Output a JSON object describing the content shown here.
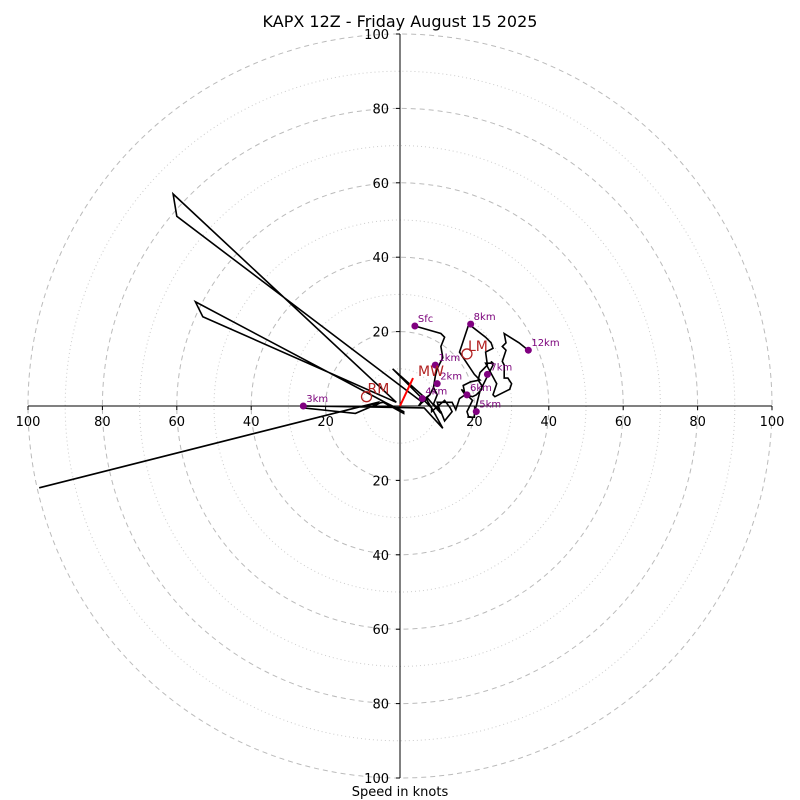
{
  "chart_data": {
    "type": "line",
    "title": "KAPX 12Z - Friday August 15 2025",
    "xlabel": "Speed in knots",
    "ylabel": "",
    "range": [
      -100,
      100
    ],
    "rings_major": [
      20,
      40,
      60,
      80,
      100
    ],
    "rings_minor": [
      10,
      30,
      50,
      70,
      90
    ],
    "tick_labels": [
      "100",
      "80",
      "60",
      "40",
      "20",
      "20",
      "40",
      "60",
      "80",
      "100"
    ],
    "x_tick_values": [
      -100,
      -80,
      -60,
      -40,
      -20,
      20,
      40,
      60,
      80,
      100
    ],
    "y_tick_values": [
      100,
      80,
      60,
      40,
      20,
      -20,
      -40,
      -60,
      -80,
      -100
    ],
    "colors": {
      "hodograph": "#000000",
      "height_marker": "#800080",
      "motion": "#b22222",
      "mean_wind_vector": "#ff0000",
      "grid": "#bbbbbb"
    },
    "hodograph": [
      [
        4,
        21.5
      ],
      [
        11,
        19.5
      ],
      [
        12,
        18.5
      ],
      [
        11,
        16
      ],
      [
        11.5,
        13
      ],
      [
        10,
        10
      ],
      [
        9.5,
        8
      ],
      [
        9,
        5
      ],
      [
        8,
        3
      ],
      [
        6,
        1.5
      ],
      [
        5,
        0
      ],
      [
        6,
        1
      ],
      [
        7,
        2
      ],
      [
        8,
        3
      ],
      [
        9,
        5
      ],
      [
        10,
        3
      ],
      [
        9,
        0.5
      ],
      [
        11,
        -1.5
      ],
      [
        12,
        -4
      ],
      [
        14,
        -1.5
      ],
      [
        13.5,
        -0.5
      ],
      [
        12,
        1.5
      ],
      [
        8.5,
        -1.5
      ],
      [
        8.5,
        -0.5
      ],
      [
        -2,
        10
      ],
      [
        7,
        2
      ],
      [
        8.5,
        -0.5
      ],
      [
        11.5,
        -6
      ],
      [
        6.5,
        -0.5
      ],
      [
        -26,
        0
      ],
      [
        -26,
        -0.5
      ],
      [
        -12,
        -2
      ],
      [
        -5,
        1
      ],
      [
        -7,
        0
      ],
      [
        -6,
        1
      ],
      [
        -97,
        -22
      ],
      [
        -10,
        0
      ],
      [
        -4.5,
        1
      ],
      [
        1,
        -2
      ],
      [
        1,
        -1.5
      ],
      [
        -4,
        1
      ],
      [
        -55,
        28
      ],
      [
        -53,
        24
      ],
      [
        -1,
        1
      ],
      [
        -61,
        57
      ],
      [
        -60,
        51
      ],
      [
        6,
        1
      ],
      [
        7.5,
        2
      ],
      [
        11,
        -2
      ],
      [
        10,
        1
      ],
      [
        14,
        1
      ],
      [
        15,
        -1
      ],
      [
        16,
        2
      ],
      [
        17.5,
        3
      ],
      [
        17,
        5.5
      ],
      [
        19,
        6.5
      ],
      [
        21.5,
        7
      ],
      [
        20,
        8.5
      ],
      [
        16,
        14.5
      ],
      [
        16.5,
        16
      ],
      [
        18.5,
        22
      ],
      [
        23,
        18.5
      ],
      [
        24.5,
        17
      ],
      [
        25,
        15.5
      ],
      [
        23,
        14.5
      ],
      [
        23.5,
        11
      ],
      [
        21.5,
        9
      ],
      [
        21,
        7
      ],
      [
        22,
        5.5
      ],
      [
        22,
        4.5
      ],
      [
        20.5,
        3
      ],
      [
        19.5,
        2.5
      ],
      [
        17.5,
        3
      ],
      [
        16.5,
        4.5
      ],
      [
        19.5,
        1.5
      ],
      [
        18,
        -1.5
      ],
      [
        18.5,
        -3
      ],
      [
        20,
        -3
      ],
      [
        20,
        -1.5
      ],
      [
        20.5,
        0
      ],
      [
        21,
        2
      ],
      [
        21.5,
        4
      ],
      [
        22.5,
        6
      ],
      [
        23.5,
        8
      ],
      [
        24.5,
        10
      ],
      [
        25,
        11
      ],
      [
        24.5,
        12
      ],
      [
        25,
        11.5
      ],
      [
        23,
        11.5
      ],
      [
        26,
        6
      ],
      [
        25,
        3
      ],
      [
        25.5,
        2.5
      ],
      [
        29.5,
        4.5
      ],
      [
        30,
        6
      ],
      [
        29,
        7.5
      ],
      [
        28,
        7.5
      ],
      [
        28,
        9
      ],
      [
        28,
        11
      ],
      [
        27.5,
        12
      ],
      [
        28.5,
        15
      ],
      [
        27.5,
        16
      ],
      [
        28.5,
        17
      ],
      [
        28,
        19.5
      ],
      [
        32,
        17
      ],
      [
        34.5,
        15
      ]
    ],
    "height_markers": [
      {
        "label": "Sfc",
        "x": 4,
        "y": 21.5
      },
      {
        "label": "1km",
        "x": 9.5,
        "y": 11
      },
      {
        "label": "2km",
        "x": 10,
        "y": 6
      },
      {
        "label": "3km",
        "x": -26,
        "y": 0
      },
      {
        "label": "4km",
        "x": 6,
        "y": 2
      },
      {
        "label": "5km",
        "x": 20.5,
        "y": -1.5
      },
      {
        "label": "6km",
        "x": 18,
        "y": 3
      },
      {
        "label": "7km",
        "x": 23.5,
        "y": 8.5
      },
      {
        "label": "8km",
        "x": 19,
        "y": 22
      },
      {
        "label": "12km",
        "x": 34.5,
        "y": 15
      }
    ],
    "storm_motion": [
      {
        "label": "RM",
        "x": -9,
        "y": 2.5
      },
      {
        "label": "LM",
        "x": 18,
        "y": 14
      },
      {
        "label": "MW",
        "x": 3.5,
        "y": 7.5
      }
    ],
    "mean_wind_vector": {
      "x": 3.5,
      "y": 7.5
    }
  }
}
